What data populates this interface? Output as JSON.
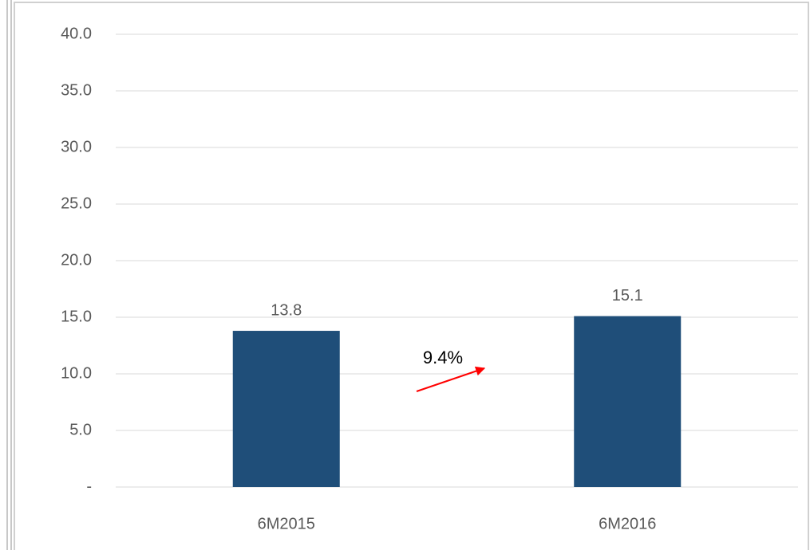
{
  "chart_data": {
    "type": "bar",
    "categories": [
      "6M2015",
      "6M2016"
    ],
    "values": [
      13.8,
      15.1
    ],
    "color": "#1f4e79",
    "ylim": [
      0,
      40
    ],
    "yticks": [
      {
        "value": 0,
        "label": "-"
      },
      {
        "value": 5,
        "label": "5.0"
      },
      {
        "value": 10,
        "label": "10.0"
      },
      {
        "value": 15,
        "label": "15.0"
      },
      {
        "value": 20,
        "label": "20.0"
      },
      {
        "value": 25,
        "label": "25.0"
      },
      {
        "value": 30,
        "label": "30.0"
      },
      {
        "value": 35,
        "label": "35.0"
      },
      {
        "value": 40,
        "label": "40.0"
      }
    ],
    "grid": true,
    "annotation": "9.4%",
    "annotation_color": "#ff0000"
  }
}
